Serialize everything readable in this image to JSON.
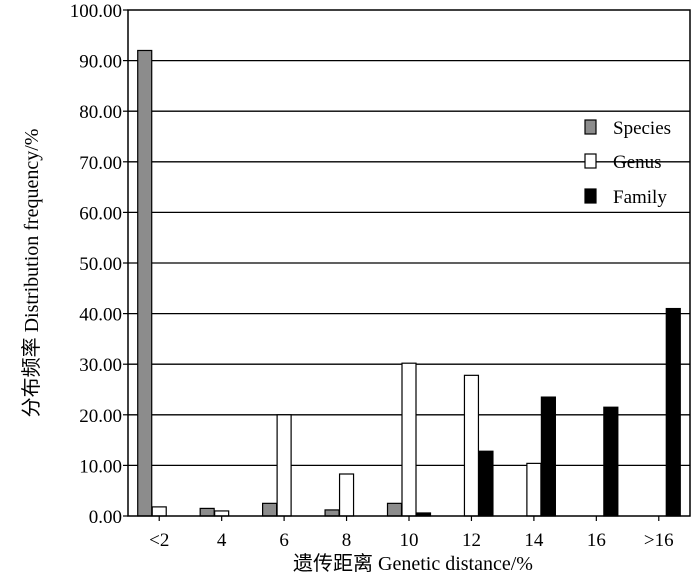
{
  "chart_data": {
    "type": "bar",
    "xlabel": "遗传距离 Genetic distance/%",
    "ylabel": "分布频率 Distribution frequency/%",
    "categories": [
      "<2",
      "4",
      "6",
      "8",
      "10",
      "12",
      "14",
      "16",
      ">16"
    ],
    "ylim": [
      0,
      100
    ],
    "yticks": [
      "0.00",
      "10.00",
      "20.00",
      "30.00",
      "40.00",
      "50.00",
      "60.00",
      "70.00",
      "80.00",
      "90.00",
      "100.00"
    ],
    "grid": "horizontal",
    "legend_position": "right",
    "series": [
      {
        "name": "Species",
        "color": "#8c8c8c",
        "values": [
          92.0,
          1.5,
          2.5,
          1.2,
          2.5,
          0,
          0,
          0,
          0
        ]
      },
      {
        "name": "Genus",
        "color": "#ffffff",
        "values": [
          1.8,
          1.0,
          20.0,
          8.3,
          30.2,
          27.8,
          10.4,
          0,
          0
        ]
      },
      {
        "name": "Family",
        "color": "#000000",
        "values": [
          0,
          0,
          0,
          0,
          0.6,
          12.8,
          23.5,
          21.5,
          41.0
        ]
      }
    ]
  }
}
